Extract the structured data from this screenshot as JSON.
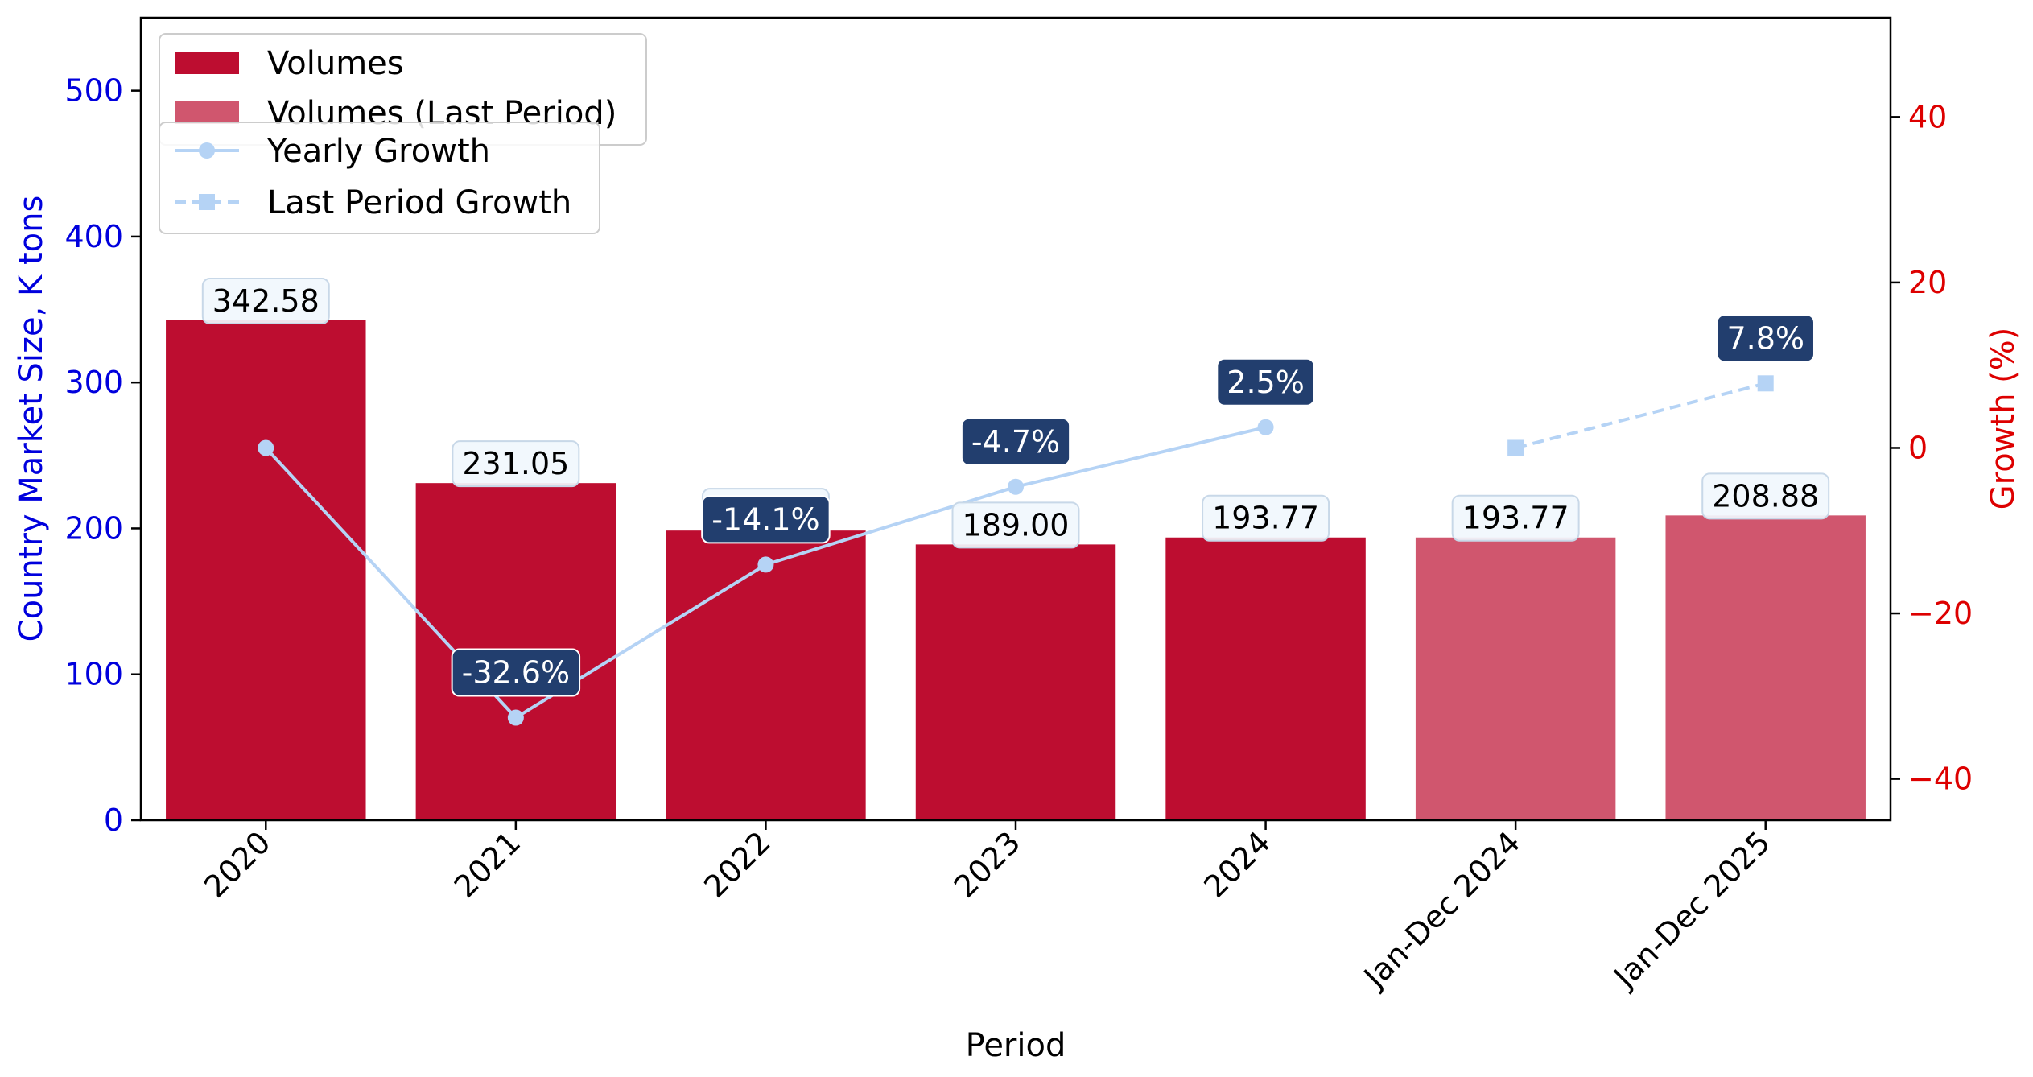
{
  "chart_data": {
    "type": "bar",
    "categories": [
      "2020",
      "2021",
      "2022",
      "2023",
      "2024",
      "Jan-Dec 2024",
      "Jan-Dec 2025"
    ],
    "series": [
      {
        "name": "Volumes",
        "type": "bar",
        "color": "#bd0d30",
        "values": [
          342.58,
          231.05,
          198.5,
          189.0,
          193.77,
          null,
          null
        ],
        "labels": [
          "342.58",
          "231.05",
          "198.50",
          "189.00",
          "193.77",
          null,
          null
        ]
      },
      {
        "name": "Volumes (Last Period)",
        "type": "bar",
        "color": "#d0566e",
        "values": [
          null,
          null,
          null,
          null,
          null,
          193.77,
          208.88
        ],
        "labels": [
          null,
          null,
          null,
          null,
          null,
          "193.77",
          "208.88"
        ]
      },
      {
        "name": "Yearly Growth",
        "type": "line",
        "axis": "right",
        "color": "#b5d3f5",
        "marker": "circle",
        "linestyle": "solid",
        "values": [
          0,
          -32.6,
          -14.1,
          -4.7,
          2.5,
          null,
          null
        ],
        "labels": [
          null,
          "-32.6%",
          "-14.1%",
          "-4.7%",
          "2.5%",
          null,
          null
        ]
      },
      {
        "name": "Last Period Growth",
        "type": "line",
        "axis": "right",
        "color": "#b5d3f5",
        "marker": "square",
        "linestyle": "dashed",
        "values": [
          null,
          null,
          null,
          null,
          null,
          0,
          7.8
        ],
        "labels": [
          null,
          null,
          null,
          null,
          null,
          null,
          "7.8%"
        ]
      }
    ],
    "xlabel": "Period",
    "ylabel": "Country Market Size, K tons",
    "y2label": "Growth (%)",
    "ylim": [
      0,
      550
    ],
    "y2lim": [
      -45,
      52
    ],
    "yticks": [
      0,
      100,
      200,
      300,
      400,
      500
    ],
    "y2ticks": [
      -40,
      -20,
      0,
      20,
      40
    ],
    "y2tick_labels": [
      "−40",
      "−20",
      "0",
      "20",
      "40"
    ],
    "grid": false,
    "legend_placement": "top-left",
    "colors": {
      "left_axis": "#0000dd",
      "right_axis": "#dd0000",
      "growth_label_bg": "#223e6e",
      "value_label_bg": "#f1f7fd"
    }
  }
}
